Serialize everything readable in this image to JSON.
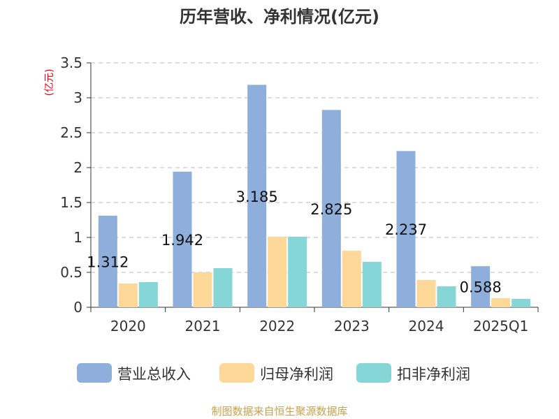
{
  "title": "历年营收、净利情况(亿元)",
  "source": "制图数据来自恒生聚源数据库",
  "colors": {
    "revenue": "#8eaedc",
    "net_profit": "#fed898",
    "deducted_profit": "#86d6d7",
    "unit_label": "#e60012",
    "grid": "#bbbbbb",
    "axis": "#333333",
    "text": "#333333"
  },
  "chart_data": {
    "type": "bar",
    "title": "历年营收、净利情况(亿元)",
    "ylabel": "(亿元)",
    "ylim": [
      0,
      3.5
    ],
    "yticks": [
      "0",
      "0.5",
      "1",
      "1.5",
      "2",
      "2.5",
      "3",
      "3.5"
    ],
    "grid": "horizontal-dashed",
    "legend_position": "bottom",
    "categories": [
      "2020",
      "2021",
      "2022",
      "2023",
      "2024",
      "2025Q1"
    ],
    "series": [
      {
        "name": "营业总收入",
        "values": [
          1.312,
          1.942,
          3.185,
          2.825,
          2.237,
          0.588
        ],
        "labels": [
          "1.312",
          "1.942",
          "3.185",
          "2.825",
          "2.237",
          "0.588"
        ]
      },
      {
        "name": "归母净利润",
        "values": [
          0.34,
          0.5,
          1.01,
          0.81,
          0.39,
          0.13
        ]
      },
      {
        "name": "扣非净利润",
        "values": [
          0.36,
          0.56,
          1.01,
          0.65,
          0.3,
          0.12
        ]
      }
    ]
  }
}
